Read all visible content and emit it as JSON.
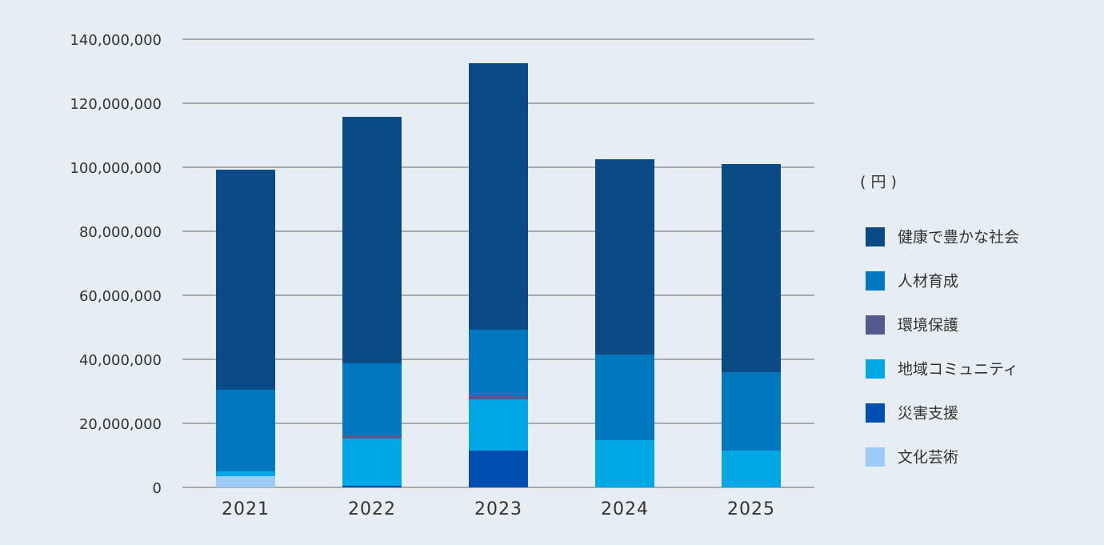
{
  "chart_data": {
    "type": "stacked-bar",
    "unit_label": "( 円 )",
    "categories": [
      "2021",
      "2022",
      "2023",
      "2024",
      "2025"
    ],
    "series": [
      {
        "name": "健康で豊かな社会",
        "color": "#0a4a85",
        "values": [
          68750000,
          77000000,
          83250000,
          61000000,
          65000000
        ]
      },
      {
        "name": "人材育成",
        "color": "#0277bf",
        "values": [
          25500000,
          22500000,
          20750000,
          26750000,
          24500000
        ]
      },
      {
        "name": "環境保護",
        "color": "#545a8e",
        "values": [
          0,
          1000000,
          1000000,
          0,
          0
        ]
      },
      {
        "name": "地域コミュニティ",
        "color": "#00a7e5",
        "values": [
          1500000,
          14750000,
          16000000,
          14750000,
          11500000
        ]
      },
      {
        "name": "災害支援",
        "color": "#004fb0",
        "values": [
          0,
          500000,
          11500000,
          0,
          0
        ]
      },
      {
        "name": "文化芸術",
        "color": "#9ccbf7",
        "values": [
          3500000,
          0,
          0,
          0,
          0
        ]
      }
    ],
    "ylim": [
      0,
      140000000
    ],
    "yticks": [
      0,
      {
        "value": 20000000,
        "label": "20,000,000"
      },
      {
        "value": 40000000,
        "label": "40,000,000"
      },
      {
        "value": 60000000,
        "label": "60,000,000"
      },
      {
        "value": 80000000,
        "label": "80,000,000"
      },
      {
        "value": 100000000,
        "label": "100,000,000"
      },
      {
        "value": 120000000,
        "label": "120,000,000"
      },
      {
        "value": 140000000,
        "label": "140,000,000"
      }
    ],
    "grid": true
  }
}
